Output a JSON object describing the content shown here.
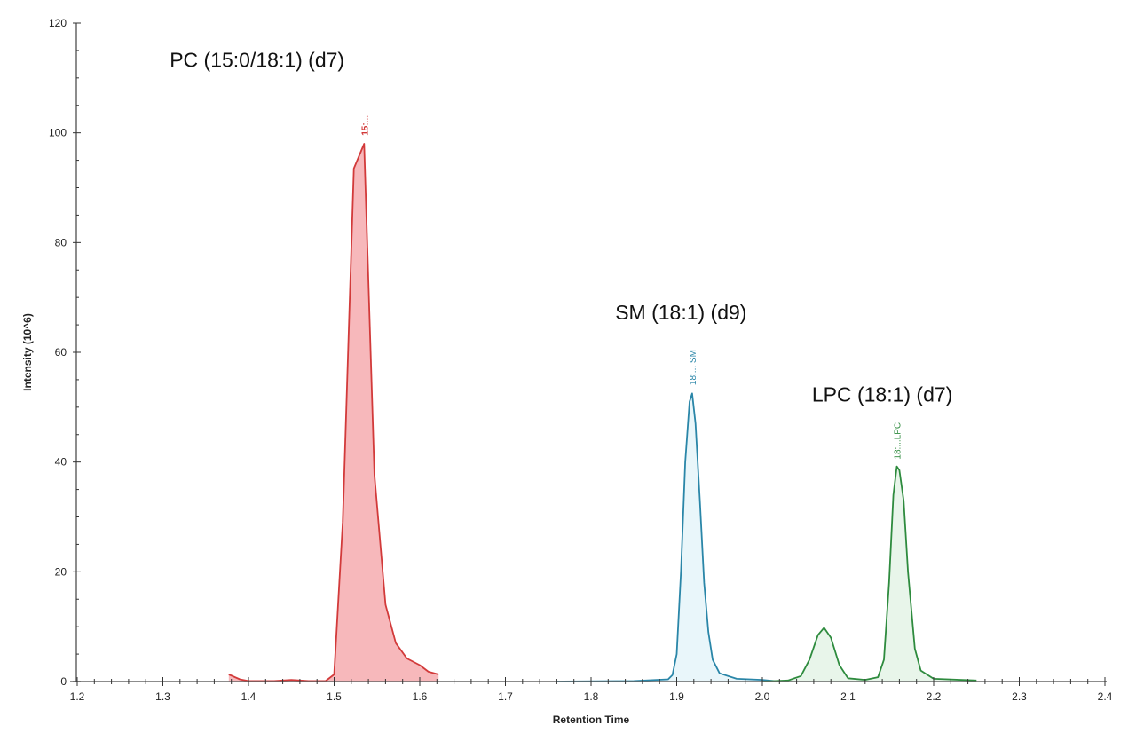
{
  "chart_data": {
    "type": "area",
    "xlabel": "Retention Time",
    "ylabel": "Intensity (10^6)",
    "xlim": [
      1.2,
      2.4
    ],
    "ylim": [
      0,
      120
    ],
    "x_ticks": [
      "1.2",
      "1.3",
      "1.4",
      "1.5",
      "1.6",
      "1.7",
      "1.8",
      "1.9",
      "2.0",
      "2.1",
      "2.2",
      "2.3",
      "2.4"
    ],
    "y_ticks": [
      "0",
      "20",
      "40",
      "60",
      "80",
      "100",
      "120"
    ],
    "x_minor_step": 0.02,
    "y_minor_step": 5,
    "grid": false,
    "series": [
      {
        "color": "#d23a3a",
        "fill": "#f7b8bb",
        "peak_title": "PC (15:0/18:1) (d7)",
        "peak_tag": "15:...",
        "tag_bold": true,
        "title_at": [
          1.41,
          112
        ],
        "tag_at": [
          1.535,
          99.5
        ],
        "x": [
          1.377,
          1.39,
          1.4,
          1.43,
          1.45,
          1.47,
          1.49,
          1.5,
          1.51,
          1.523,
          1.535,
          1.547,
          1.56,
          1.572,
          1.585,
          1.6,
          1.61,
          1.622
        ],
        "y": [
          1.3,
          0.4,
          0.1,
          0.1,
          0.3,
          0.1,
          0.1,
          1.3,
          29,
          93.5,
          98,
          37.7,
          14,
          7,
          4.2,
          3,
          1.8,
          1.3
        ]
      },
      {
        "color": "#2a86a8",
        "fill": "#e9f6fa",
        "peak_title": "SM (18:1) (d9)",
        "peak_tag": "18:... SM",
        "tag_bold": false,
        "title_at": [
          1.905,
          66
        ],
        "tag_at": [
          1.918,
          54
        ],
        "x": [
          1.76,
          1.85,
          1.89,
          1.895,
          1.9,
          1.905,
          1.91,
          1.915,
          1.918,
          1.922,
          1.927,
          1.932,
          1.937,
          1.942,
          1.95,
          1.97,
          2.0,
          2.02
        ],
        "y": [
          0,
          0.1,
          0.4,
          1.2,
          5,
          20,
          40,
          51,
          52.5,
          47,
          33,
          18,
          9,
          4,
          1.5,
          0.5,
          0.3,
          0
        ]
      },
      {
        "color": "#2e8b3e",
        "fill": "#e8f5ea",
        "peak_title": "LPC (18:1) (d7)",
        "peak_tag": "18:...LPC",
        "tag_bold": false,
        "title_at": [
          2.14,
          51
        ],
        "tag_at": [
          2.157,
          40.5
        ],
        "x": [
          2.0,
          2.03,
          2.045,
          2.055,
          2.065,
          2.072,
          2.08,
          2.09,
          2.1,
          2.12,
          2.135,
          2.142,
          2.148,
          2.153,
          2.157,
          2.16,
          2.165,
          2.17,
          2.178,
          2.185,
          2.2,
          2.25
        ],
        "y": [
          0,
          0.2,
          1,
          4,
          8.5,
          9.8,
          8,
          3,
          0.6,
          0.3,
          0.8,
          4,
          18,
          34,
          39.2,
          38.5,
          33,
          20,
          6,
          2,
          0.5,
          0.2
        ]
      }
    ]
  }
}
